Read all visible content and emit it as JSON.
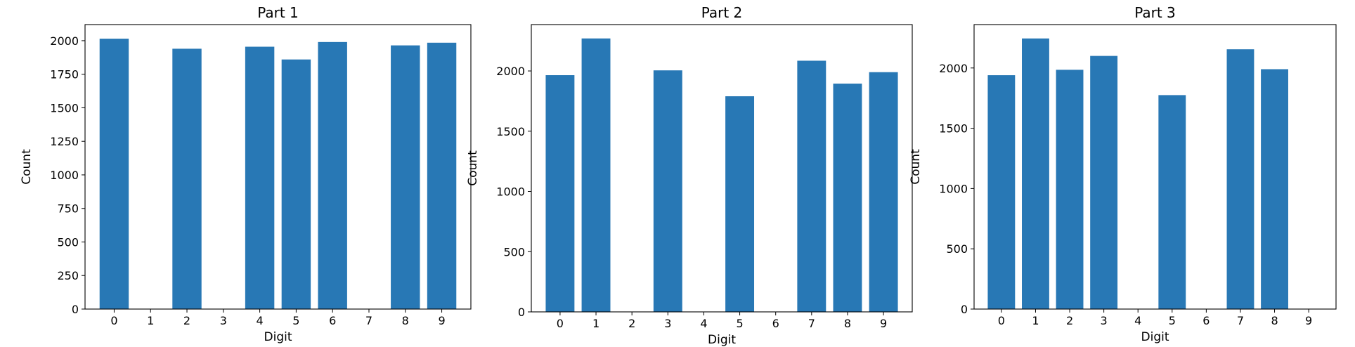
{
  "chart_data": [
    {
      "type": "bar",
      "title": "Part 1",
      "xlabel": "Digit",
      "ylabel": "Count",
      "categories": [
        "0",
        "1",
        "2",
        "3",
        "4",
        "5",
        "6",
        "7",
        "8",
        "9"
      ],
      "values": [
        2015,
        0,
        1940,
        0,
        1955,
        1860,
        1990,
        0,
        1965,
        1985
      ],
      "ylim": [
        0,
        2120
      ],
      "yticks": [
        0,
        250,
        500,
        750,
        1000,
        1250,
        1500,
        1750,
        2000
      ],
      "bar_color": "#2878b5",
      "grid": false
    },
    {
      "type": "bar",
      "title": "Part 2",
      "xlabel": "Digit",
      "ylabel": "Count",
      "categories": [
        "0",
        "1",
        "2",
        "3",
        "4",
        "5",
        "6",
        "7",
        "8",
        "9"
      ],
      "values": [
        1965,
        2270,
        0,
        2005,
        0,
        1790,
        0,
        2085,
        1895,
        1990
      ],
      "ylim": [
        0,
        2385
      ],
      "yticks": [
        0,
        500,
        1000,
        1500,
        2000
      ],
      "bar_color": "#2878b5",
      "grid": false
    },
    {
      "type": "bar",
      "title": "Part 3",
      "xlabel": "Digit",
      "ylabel": "Count",
      "categories": [
        "0",
        "1",
        "2",
        "3",
        "4",
        "5",
        "6",
        "7",
        "8",
        "9"
      ],
      "values": [
        1940,
        2245,
        1985,
        2100,
        0,
        1775,
        0,
        2155,
        1990,
        0
      ],
      "ylim": [
        0,
        2360
      ],
      "yticks": [
        0,
        500,
        1000,
        1500,
        2000
      ],
      "bar_color": "#2878b5",
      "grid": false
    }
  ]
}
